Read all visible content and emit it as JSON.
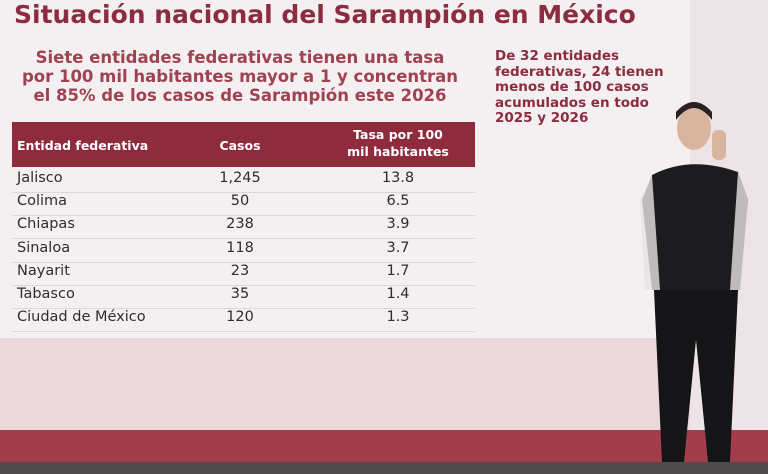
{
  "title": "Situación nacional del Sarampión en México",
  "subtitle": [
    "Siete entidades federativas tienen una tasa",
    "por 100 mil habitantes mayor a 1 y concentran",
    "el 85% de los casos de Sarampión este 2026"
  ],
  "side_note": [
    "De 32 entidades",
    "federativas, 24 tienen",
    "menos de 100 casos",
    "acumulados en todo",
    "2025 y 2026"
  ],
  "table": {
    "header": [
      "Entidad federativa",
      "Casos",
      "Tasa por 100 mil habitantes"
    ],
    "rows": [
      [
        "Jalisco",
        "1,245",
        "13.8"
      ],
      [
        "Colima",
        "50",
        "6.5"
      ],
      [
        "Chiapas",
        "238",
        "3.9"
      ],
      [
        "Sinaloa",
        "118",
        "3.7"
      ],
      [
        "Nayarit",
        "23",
        "1.7"
      ],
      [
        "Tabasco",
        "35",
        "1.4"
      ],
      [
        "Ciudad de México",
        "120",
        "1.3"
      ]
    ]
  }
}
